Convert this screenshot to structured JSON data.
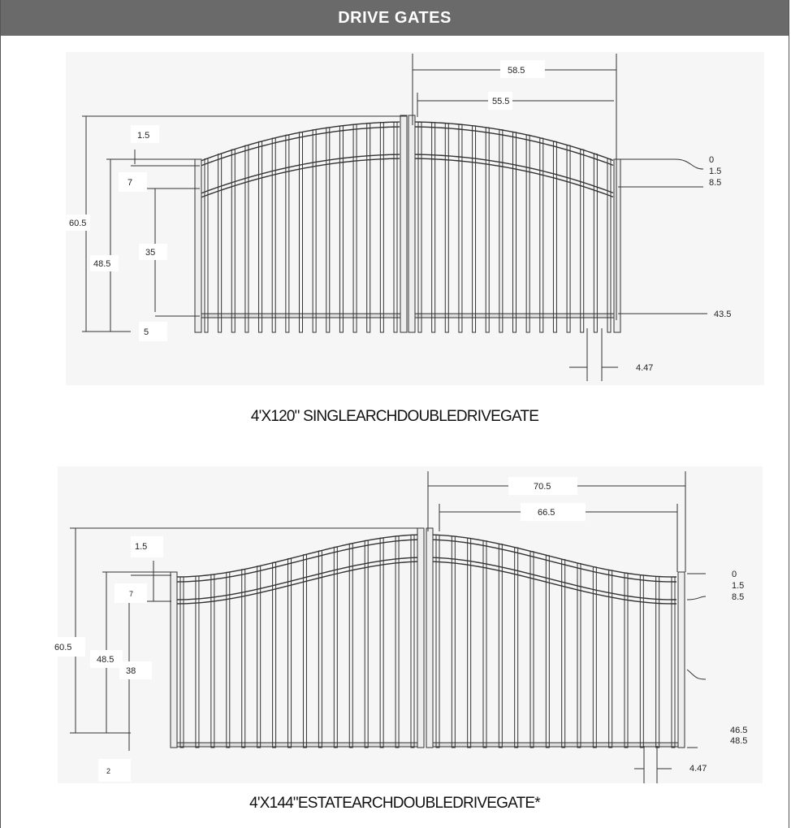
{
  "header": {
    "title": "DRIVE GATES"
  },
  "gates": [
    {
      "caption": "4'X120\" SINGLEARCHDOUBLEDRIVEGATE",
      "dims": {
        "leaf_width": "58.5",
        "inner_width": "55.5",
        "top_gap": "1.5",
        "rail_gap": "7",
        "overall_height": "60.5",
        "post_height": "48.5",
        "picket_section": "35",
        "bottom_gap": "5",
        "right_0": "0",
        "right_1": "1.5",
        "right_2": "8.5",
        "right_bottom": "43.5",
        "picket_spacing": "4.47"
      }
    },
    {
      "caption": "4'X144\"ESTATEARCHDOUBLEDRIVEGATE*",
      "dims": {
        "leaf_width": "70.5",
        "inner_width": "66.5",
        "top_gap": "1.5",
        "rail_gap": "7",
        "overall_height": "60.5",
        "post_height": "48.5",
        "picket_section": "38",
        "bottom_gap": "2",
        "right_0": "0",
        "right_1": "1.5",
        "right_2": "8.5",
        "right_bottom_1": "46.5",
        "right_bottom_2": "48.5",
        "picket_spacing": "4.47"
      }
    }
  ]
}
